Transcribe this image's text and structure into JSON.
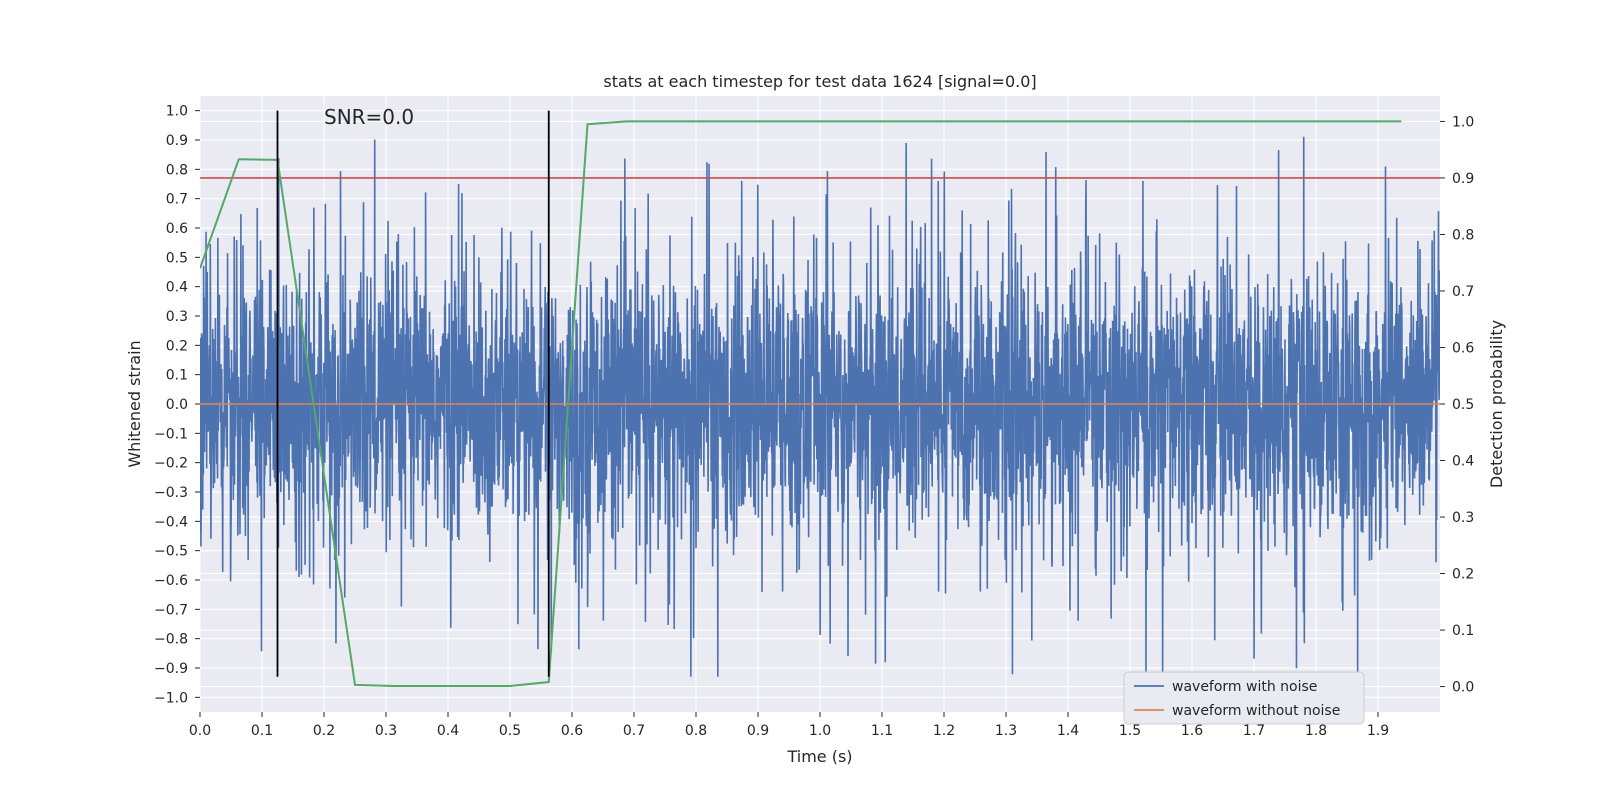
{
  "chart_data": {
    "type": "line",
    "title": "stats at each timestep for test data 1624 [signal=0.0]",
    "xlabel": "Time (s)",
    "ylabel": "Whitened strain",
    "y2label": "Detection probability",
    "xlim": [
      0.0,
      2.0
    ],
    "ylim": [
      -1.05,
      1.05
    ],
    "y2lim": [
      -0.045,
      1.045
    ],
    "x_ticks": [
      0.0,
      0.1,
      0.2,
      0.3,
      0.4,
      0.5,
      0.6,
      0.7,
      0.8,
      0.9,
      1.0,
      1.1,
      1.2,
      1.3,
      1.4,
      1.5,
      1.6,
      1.7,
      1.8,
      1.9
    ],
    "x_tick_labels": [
      "0.0",
      "0.1",
      "0.2",
      "0.3",
      "0.4",
      "0.5",
      "0.6",
      "0.7",
      "0.8",
      "0.9",
      "1.0",
      "1.1",
      "1.2",
      "1.3",
      "1.4",
      "1.5",
      "1.6",
      "1.7",
      "1.8",
      "1.9"
    ],
    "y_ticks": [
      1.0,
      0.9,
      0.8,
      0.7,
      0.6,
      0.5,
      0.4,
      0.3,
      0.2,
      0.1,
      0.0,
      -0.1,
      -0.2,
      -0.3,
      -0.4,
      -0.5,
      -0.6,
      -0.7,
      -0.8,
      -0.9,
      -1.0
    ],
    "y_tick_labels": [
      "1.0",
      "0.9",
      "0.8",
      "0.7",
      "0.6",
      "0.5",
      "0.4",
      "0.3",
      "0.2",
      "0.1",
      "0.0",
      "−0.1",
      "−0.2",
      "−0.3",
      "−0.4",
      "−0.5",
      "−0.6",
      "−0.7",
      "−0.8",
      "−0.9",
      "−1.0"
    ],
    "y2_ticks": [
      1.0,
      0.9,
      0.8,
      0.7,
      0.6,
      0.5,
      0.4,
      0.3,
      0.2,
      0.1,
      0.0
    ],
    "y2_tick_labels": [
      "1.0",
      "0.9",
      "0.8",
      "0.7",
      "0.6",
      "0.5",
      "0.4",
      "0.3",
      "0.2",
      "0.1",
      "0.0"
    ],
    "grid": true,
    "annotation": "SNR=0.0",
    "legend": {
      "placement": "lower-right",
      "entries": [
        {
          "label": "waveform with noise",
          "color": "#4c72b0"
        },
        {
          "label": "waveform without noise",
          "color": "#dd8452"
        }
      ]
    },
    "series": [
      {
        "name": "waveform with noise",
        "color": "#4c72b0",
        "axis": "left",
        "kind": "noise",
        "x_range": [
          0.0,
          2.0
        ],
        "approx_amplitude": [
          -0.93,
          1.0
        ]
      },
      {
        "name": "waveform without noise",
        "color": "#dd8452",
        "axis": "left",
        "x": [
          0.0,
          2.0
        ],
        "y": [
          0.0,
          0.0
        ]
      },
      {
        "color": "#55a868",
        "axis": "right",
        "x": [
          0.0,
          0.0625,
          0.125,
          0.25,
          0.3125,
          0.5,
          0.5625,
          0.625,
          0.6875,
          1.9375
        ],
        "y": [
          0.74,
          0.933,
          0.932,
          0.003,
          0.001,
          0.001,
          0.008,
          0.995,
          1.0,
          1.0
        ]
      },
      {
        "color": "#c44e52",
        "axis": "right",
        "kind": "threshold",
        "y": 0.9
      }
    ],
    "vlines": [
      {
        "x": 0.125,
        "y_range": [
          -0.93,
          1.0
        ],
        "color": "#000000"
      },
      {
        "x": 0.5625,
        "y_range": [
          -0.93,
          1.0
        ],
        "color": "#000000"
      }
    ],
    "colors": {
      "plot_background": "#eaeaf2",
      "grid": "#ffffff",
      "text": "#262626"
    }
  }
}
